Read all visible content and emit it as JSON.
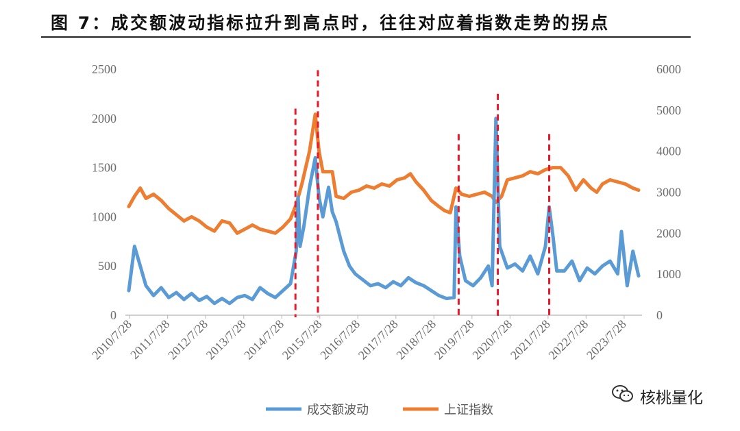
{
  "title": "图 7：成交额波动指标拉升到高点时，往往对应着指数走势的拐点",
  "watermark": "核桃量化",
  "chart_data": {
    "type": "line",
    "x_tick_labels": [
      "2010/7/28",
      "2011/7/28",
      "2012/7/28",
      "2013/7/28",
      "2014/7/28",
      "2015/7/28",
      "2016/7/28",
      "2017/7/28",
      "2018/7/28",
      "2019/7/28",
      "2020/7/28",
      "2021/7/28",
      "2022/7/28",
      "2023/7/28"
    ],
    "y_left": {
      "ticks": [
        0,
        500,
        1000,
        1500,
        2000,
        2500
      ],
      "ylim": [
        0,
        2500
      ]
    },
    "y_right": {
      "ticks": [
        0,
        1000,
        2000,
        3000,
        4000,
        5000,
        6000
      ],
      "ylim": [
        0,
        6000
      ]
    },
    "grid": false,
    "legend_position": "bottom",
    "series": [
      {
        "name": "成交额波动",
        "axis": "left",
        "color": "#5b9bd5",
        "points": [
          [
            2010.55,
            250
          ],
          [
            2010.7,
            700
          ],
          [
            2010.85,
            500
          ],
          [
            2011.0,
            300
          ],
          [
            2011.2,
            200
          ],
          [
            2011.4,
            280
          ],
          [
            2011.6,
            180
          ],
          [
            2011.8,
            230
          ],
          [
            2012.0,
            160
          ],
          [
            2012.2,
            220
          ],
          [
            2012.4,
            150
          ],
          [
            2012.6,
            190
          ],
          [
            2012.8,
            120
          ],
          [
            2013.0,
            170
          ],
          [
            2013.2,
            120
          ],
          [
            2013.4,
            180
          ],
          [
            2013.6,
            200
          ],
          [
            2013.8,
            160
          ],
          [
            2014.0,
            280
          ],
          [
            2014.2,
            220
          ],
          [
            2014.4,
            180
          ],
          [
            2014.6,
            250
          ],
          [
            2014.8,
            320
          ],
          [
            2014.95,
            650
          ],
          [
            2015.0,
            1200
          ],
          [
            2015.05,
            700
          ],
          [
            2015.15,
            900
          ],
          [
            2015.3,
            1300
          ],
          [
            2015.45,
            1600
          ],
          [
            2015.55,
            1200
          ],
          [
            2015.65,
            1000
          ],
          [
            2015.8,
            1300
          ],
          [
            2015.9,
            1050
          ],
          [
            2016.0,
            950
          ],
          [
            2016.1,
            800
          ],
          [
            2016.2,
            650
          ],
          [
            2016.35,
            500
          ],
          [
            2016.5,
            420
          ],
          [
            2016.7,
            360
          ],
          [
            2016.9,
            300
          ],
          [
            2017.1,
            320
          ],
          [
            2017.3,
            280
          ],
          [
            2017.5,
            340
          ],
          [
            2017.7,
            300
          ],
          [
            2017.9,
            380
          ],
          [
            2018.1,
            330
          ],
          [
            2018.3,
            300
          ],
          [
            2018.5,
            250
          ],
          [
            2018.7,
            200
          ],
          [
            2018.9,
            170
          ],
          [
            2019.1,
            180
          ],
          [
            2019.15,
            1100
          ],
          [
            2019.25,
            600
          ],
          [
            2019.4,
            350
          ],
          [
            2019.6,
            300
          ],
          [
            2019.8,
            380
          ],
          [
            2020.0,
            500
          ],
          [
            2020.1,
            300
          ],
          [
            2020.2,
            2000
          ],
          [
            2020.3,
            700
          ],
          [
            2020.5,
            480
          ],
          [
            2020.7,
            520
          ],
          [
            2020.9,
            450
          ],
          [
            2021.1,
            600
          ],
          [
            2021.3,
            420
          ],
          [
            2021.5,
            700
          ],
          [
            2021.6,
            1100
          ],
          [
            2021.7,
            800
          ],
          [
            2021.8,
            450
          ],
          [
            2022.0,
            450
          ],
          [
            2022.2,
            550
          ],
          [
            2022.4,
            350
          ],
          [
            2022.6,
            480
          ],
          [
            2022.8,
            420
          ],
          [
            2023.0,
            500
          ],
          [
            2023.2,
            550
          ],
          [
            2023.4,
            420
          ],
          [
            2023.5,
            850
          ],
          [
            2023.65,
            300
          ],
          [
            2023.8,
            650
          ],
          [
            2023.95,
            400
          ]
        ]
      },
      {
        "name": "上证指数",
        "axis": "right",
        "color": "#ed7d31",
        "points": [
          [
            2010.55,
            2650
          ],
          [
            2010.7,
            2900
          ],
          [
            2010.85,
            3100
          ],
          [
            2011.0,
            2850
          ],
          [
            2011.2,
            2950
          ],
          [
            2011.4,
            2800
          ],
          [
            2011.6,
            2600
          ],
          [
            2011.8,
            2450
          ],
          [
            2012.0,
            2300
          ],
          [
            2012.2,
            2400
          ],
          [
            2012.4,
            2300
          ],
          [
            2012.6,
            2150
          ],
          [
            2012.8,
            2050
          ],
          [
            2013.0,
            2300
          ],
          [
            2013.2,
            2250
          ],
          [
            2013.4,
            2000
          ],
          [
            2013.6,
            2100
          ],
          [
            2013.8,
            2200
          ],
          [
            2014.0,
            2100
          ],
          [
            2014.2,
            2050
          ],
          [
            2014.4,
            2000
          ],
          [
            2014.6,
            2150
          ],
          [
            2014.8,
            2350
          ],
          [
            2014.95,
            2700
          ],
          [
            2015.1,
            3200
          ],
          [
            2015.3,
            4000
          ],
          [
            2015.45,
            4900
          ],
          [
            2015.55,
            4000
          ],
          [
            2015.65,
            3500
          ],
          [
            2015.8,
            3500
          ],
          [
            2015.9,
            3500
          ],
          [
            2016.0,
            2900
          ],
          [
            2016.2,
            2850
          ],
          [
            2016.4,
            3000
          ],
          [
            2016.6,
            3050
          ],
          [
            2016.8,
            3150
          ],
          [
            2017.0,
            3100
          ],
          [
            2017.2,
            3200
          ],
          [
            2017.4,
            3150
          ],
          [
            2017.6,
            3300
          ],
          [
            2017.8,
            3350
          ],
          [
            2017.95,
            3450
          ],
          [
            2018.1,
            3250
          ],
          [
            2018.3,
            3050
          ],
          [
            2018.5,
            2800
          ],
          [
            2018.7,
            2650
          ],
          [
            2018.85,
            2550
          ],
          [
            2019.0,
            2500
          ],
          [
            2019.15,
            3100
          ],
          [
            2019.3,
            2950
          ],
          [
            2019.5,
            2900
          ],
          [
            2019.7,
            2950
          ],
          [
            2019.9,
            3000
          ],
          [
            2020.1,
            2900
          ],
          [
            2020.2,
            2750
          ],
          [
            2020.35,
            2900
          ],
          [
            2020.5,
            3300
          ],
          [
            2020.7,
            3350
          ],
          [
            2020.9,
            3400
          ],
          [
            2021.1,
            3500
          ],
          [
            2021.3,
            3450
          ],
          [
            2021.5,
            3550
          ],
          [
            2021.7,
            3600
          ],
          [
            2021.9,
            3600
          ],
          [
            2022.1,
            3400
          ],
          [
            2022.3,
            3050
          ],
          [
            2022.5,
            3300
          ],
          [
            2022.7,
            3100
          ],
          [
            2022.85,
            3000
          ],
          [
            2023.0,
            3200
          ],
          [
            2023.2,
            3300
          ],
          [
            2023.4,
            3250
          ],
          [
            2023.6,
            3200
          ],
          [
            2023.8,
            3100
          ],
          [
            2023.95,
            3050
          ]
        ]
      }
    ],
    "annotations": {
      "type": "vertical-dashed-lines",
      "color": "#e8182b",
      "lines": [
        {
          "x": 2014.93,
          "y_top_left_axis": 2100
        },
        {
          "x": 2015.52,
          "y_top_left_axis": 2490
        },
        {
          "x": 2019.22,
          "y_top_left_axis": 1840
        },
        {
          "x": 2020.25,
          "y_top_left_axis": 2250
        },
        {
          "x": 2021.6,
          "y_top_left_axis": 1840
        }
      ]
    }
  }
}
